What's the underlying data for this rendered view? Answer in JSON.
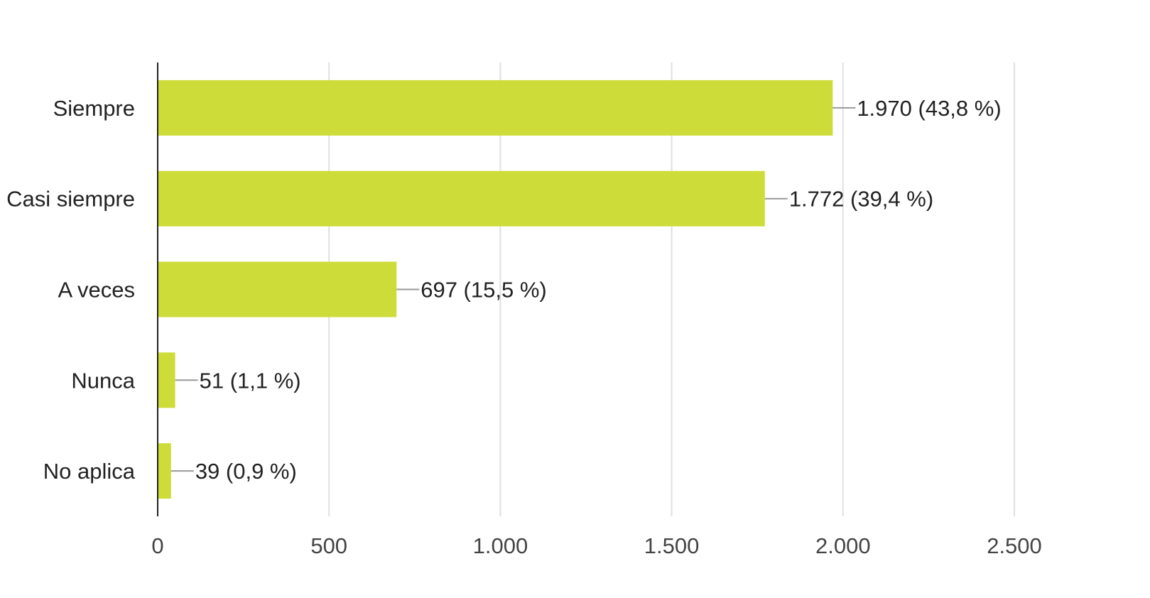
{
  "chart_data": {
    "type": "bar",
    "orientation": "horizontal",
    "categories": [
      "Siempre",
      "Casi siempre",
      "A veces",
      "Nunca",
      "No aplica"
    ],
    "values": [
      1970,
      1772,
      697,
      51,
      39
    ],
    "data_labels": [
      "1.970 (43,8 %)",
      "1.772 (39,4 %)",
      "697 (15,5 %)",
      "51 (1,1 %)",
      "39 (0,9 %)"
    ],
    "x_ticks": [
      0,
      500,
      1000,
      1500,
      2000,
      2500
    ],
    "x_tick_labels": [
      "0",
      "500",
      "1.000",
      "1.500",
      "2.000",
      "2.500"
    ],
    "xlim": [
      0,
      2500
    ],
    "grid": true,
    "legend": "none",
    "bar_color": "#cddc39",
    "grid_color": "#e0e0e0",
    "axis_color": "#222222",
    "leader_color": "#999999"
  }
}
